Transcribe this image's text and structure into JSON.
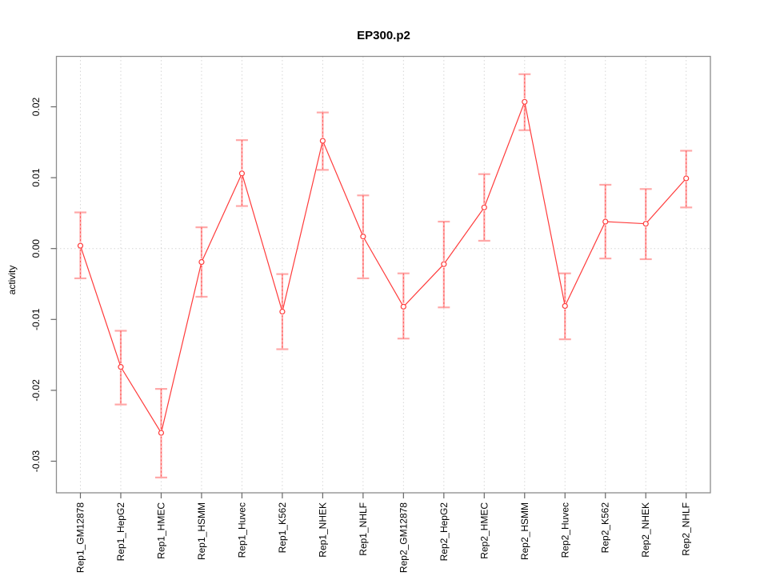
{
  "chart_data": {
    "type": "line",
    "title": "EP300.p2",
    "xlabel": "",
    "ylabel": "activity",
    "grid": {
      "vertical_dotted_per_category": true,
      "zero_line_dotted": true,
      "legend": "none"
    },
    "ylim": [
      -0.0345,
      0.0272
    ],
    "yticks": {
      "values": [
        0.02,
        0.01,
        0.0,
        -0.01,
        -0.02,
        -0.03
      ],
      "labels": [
        "0.02",
        "0.01",
        "0.00",
        "-0.01",
        "-0.02",
        "-0.03"
      ]
    },
    "categories": [
      "Rep1_GM12878",
      "Rep1_HepG2",
      "Rep1_HMEC",
      "Rep1_HSMM",
      "Rep1_Huvec",
      "Rep1_K562",
      "Rep1_NHEK",
      "Rep1_NHLF",
      "Rep2_GM12878",
      "Rep2_HepG2",
      "Rep2_HMEC",
      "Rep2_HSMM",
      "Rep2_Huvec",
      "Rep2_K562",
      "Rep2_NHEK",
      "Rep2_NHLF"
    ],
    "series": [
      {
        "name": "activity",
        "values": [
          0.0004,
          -0.0167,
          -0.026,
          -0.0019,
          0.0106,
          -0.0089,
          0.0152,
          0.0017,
          -0.0082,
          -0.0022,
          0.0058,
          0.0207,
          -0.0081,
          0.0038,
          0.0035,
          0.0099
        ],
        "upper": [
          0.0051,
          -0.0116,
          -0.0198,
          0.003,
          0.0153,
          -0.0036,
          0.0192,
          0.0075,
          -0.0035,
          0.0038,
          0.0105,
          0.0246,
          -0.0035,
          0.009,
          0.0084,
          0.0138
        ],
        "lower": [
          -0.0042,
          -0.022,
          -0.0323,
          -0.0068,
          0.006,
          -0.0142,
          0.0111,
          -0.0042,
          -0.0127,
          -0.0083,
          0.0011,
          0.0167,
          -0.0128,
          -0.0014,
          -0.0015,
          0.0058
        ]
      }
    ],
    "colors": {
      "line": "#ff3b3b",
      "marker": "#ff3b3b",
      "error_bar": "#ffa8a8",
      "error_bar_dash": "#ff5050",
      "grid": "#d6d6d6",
      "box": "#8c8c8c",
      "tick": "#666666",
      "text": "#000000"
    }
  }
}
